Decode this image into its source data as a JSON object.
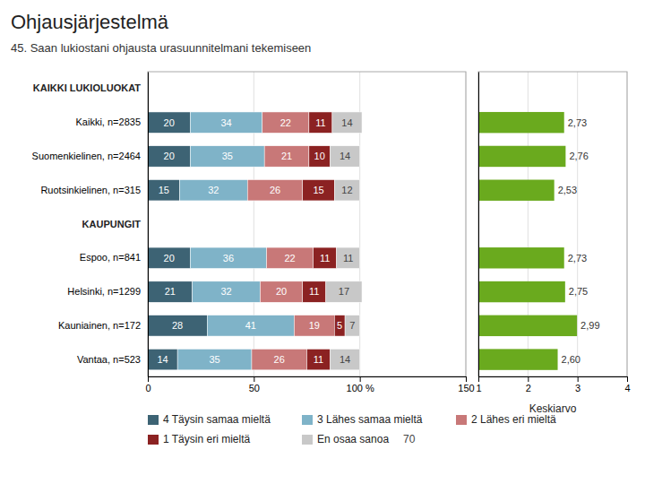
{
  "chart_data": [
    {
      "type": "bar",
      "orientation": "horizontal",
      "stacked": true,
      "data_labels": true,
      "grid": true,
      "legend": "bottom",
      "title": "Ohjausjärjestelmä",
      "subtitle": "45. Saan lukiostani ohjausta urasuunnitelmani tekemiseen",
      "annotations": [
        "70"
      ],
      "categories": [
        "KAIKKI LUKIOLUOKAT",
        "Kaikki, n=2835",
        "Suomenkielinen, n=2464",
        "Ruotsinkielinen, n=315",
        "KAUPUNGIT",
        "Espoo, n=841",
        "Helsinki, n=1299",
        "Kauniainen, n=172",
        "Vantaa, n=523"
      ],
      "series": [
        {
          "name": "4 Täysin samaa mieltä",
          "color": "#3d6374",
          "values": [
            null,
            20,
            20,
            15,
            null,
            20,
            21,
            28,
            14
          ]
        },
        {
          "name": "3 Lähes samaa mieltä",
          "color": "#7fb3c8",
          "values": [
            null,
            34,
            35,
            32,
            null,
            36,
            32,
            41,
            35
          ]
        },
        {
          "name": "2 Lähes eri mieltä",
          "color": "#c87878",
          "values": [
            null,
            22,
            21,
            26,
            null,
            22,
            20,
            19,
            26
          ]
        },
        {
          "name": "1 Täysin eri mieltä",
          "color": "#8b2222",
          "values": [
            null,
            11,
            10,
            15,
            null,
            11,
            11,
            5,
            11
          ]
        },
        {
          "name": "En osaa sanoa",
          "color": "#c8c8c8",
          "values": [
            null,
            14,
            14,
            12,
            null,
            11,
            17,
            7,
            14
          ]
        }
      ],
      "xlim": [
        0,
        150
      ],
      "xticks": [
        0,
        50,
        {
          "value": 100,
          "label": "100 %"
        },
        150
      ]
    },
    {
      "type": "bar",
      "orientation": "horizontal",
      "data_labels": true,
      "grid": true,
      "tick_labels": "x",
      "xlabel": "Keskiarvo",
      "color": "#6aaa1e",
      "categories": [
        null,
        null,
        null,
        null,
        null,
        null,
        null,
        null,
        null
      ],
      "values": [
        null,
        2.73,
        2.76,
        2.53,
        null,
        2.73,
        2.75,
        2.99,
        2.6
      ],
      "value_labels": [
        null,
        "2,73",
        "2,76",
        "2,53",
        null,
        "2,73",
        "2,75",
        "2,99",
        "2,60"
      ],
      "xlim": [
        1,
        4
      ],
      "xticks": [
        1,
        2,
        3,
        4
      ]
    }
  ]
}
